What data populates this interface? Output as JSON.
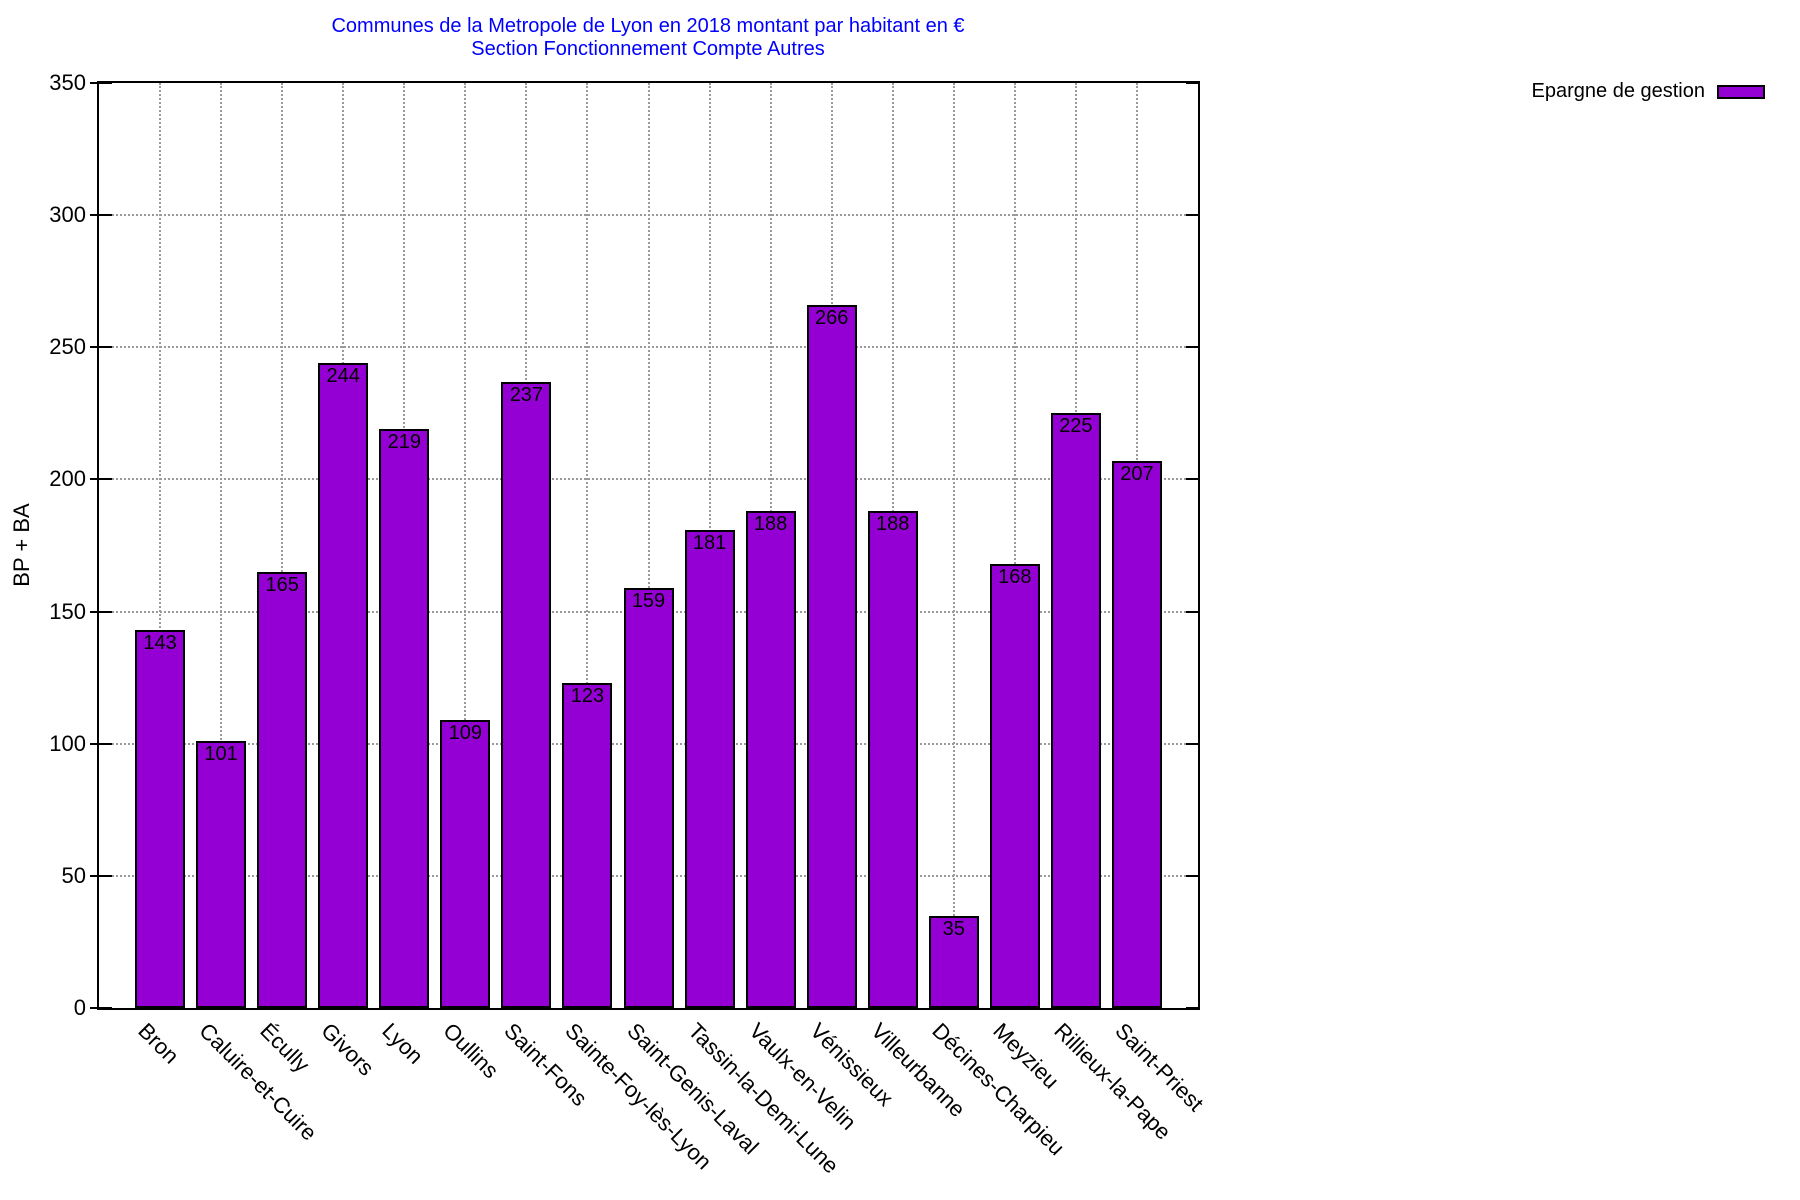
{
  "colors": {
    "bar_fill": "#9400d3",
    "bar_border": "#000000",
    "title": "#0000ff",
    "grid": "#9a9a9a",
    "axis": "#000000",
    "text": "#000000",
    "background": "#ffffff"
  },
  "chart_data": {
    "type": "bar",
    "title": "Communes de la Metropole de Lyon en 2018 montant par habitant en €",
    "subtitle": "Section Fonctionnement Compte Autres",
    "ylabel": "BP + BA",
    "xlabel": "",
    "series_name": "Epargne de gestion",
    "categories": [
      "Bron",
      "Caluire-et-Cuire",
      "Écully",
      "Givors",
      "Lyon",
      "Oullins",
      "Saint-Fons",
      "Sainte-Foy-lès-Lyon",
      "Saint-Genis-Laval",
      "Tassin-la-Demi-Lune",
      "Vaulx-en-Velin",
      "Vénissieux",
      "Villeurbanne",
      "Décines-Charpieu",
      "Meyzieu",
      "Rillieux-la-Pape",
      "Saint-Priest"
    ],
    "values": [
      143,
      101,
      165,
      244,
      219,
      109,
      237,
      123,
      159,
      181,
      188,
      266,
      188,
      35,
      168,
      225,
      207
    ],
    "ylim": [
      0,
      350
    ],
    "ytick_step": 50,
    "grid": true,
    "value_labels": true,
    "legend_position": "top-right-outside",
    "xtick_rotation": 45
  }
}
